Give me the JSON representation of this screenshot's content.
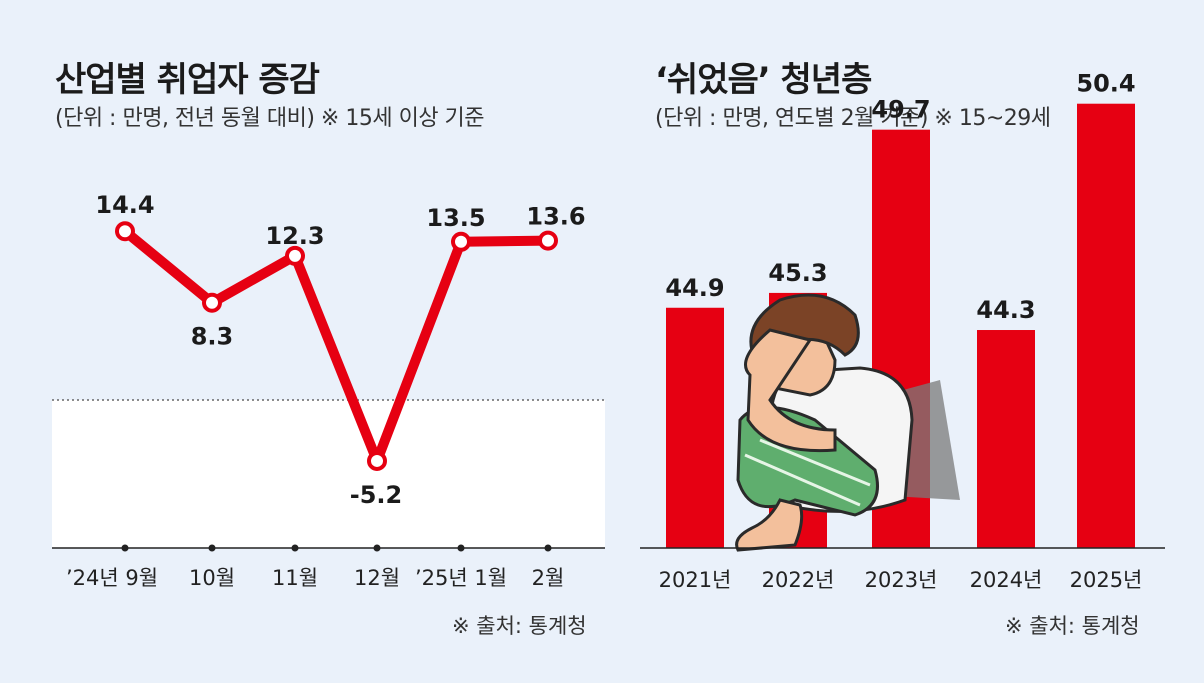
{
  "line_panel": {
    "title": "산업별 취업자 증감",
    "subtitle": "(단위 : 만명, 전년 동월 대비) ※ 15세 이상 기준",
    "source": "※ 출처: 통계청"
  },
  "bar_panel": {
    "title": "‘쉬었음’ 청년층",
    "subtitle": "(단위 : 만명, 연도별 2월 기준) ※ 15~29세",
    "source": "※ 출처: 통계청"
  },
  "colors": {
    "accent": "#e60012",
    "background": "#eaf1fa",
    "negative_area": "#ffffff"
  },
  "chart_data": [
    {
      "type": "line",
      "categories": [
        "’24년 9월",
        "10월",
        "11월",
        "12월",
        "’25년 1월",
        "2월"
      ],
      "values": [
        14.4,
        8.3,
        12.3,
        -5.2,
        13.5,
        13.6
      ],
      "labels": [
        "14.4",
        "8.3",
        "12.3",
        "-5.2",
        "13.5",
        "13.6"
      ],
      "ylim": [
        -9,
        18
      ],
      "baseline": 0,
      "grid": false
    },
    {
      "type": "bar",
      "categories": [
        "2021년",
        "2022년",
        "2023년",
        "2024년",
        "2025년"
      ],
      "values": [
        44.9,
        45.3,
        49.7,
        44.3,
        50.4
      ],
      "labels": [
        "44.9",
        "45.3",
        "49.7",
        "44.3",
        "50.4"
      ],
      "grid": false
    }
  ]
}
